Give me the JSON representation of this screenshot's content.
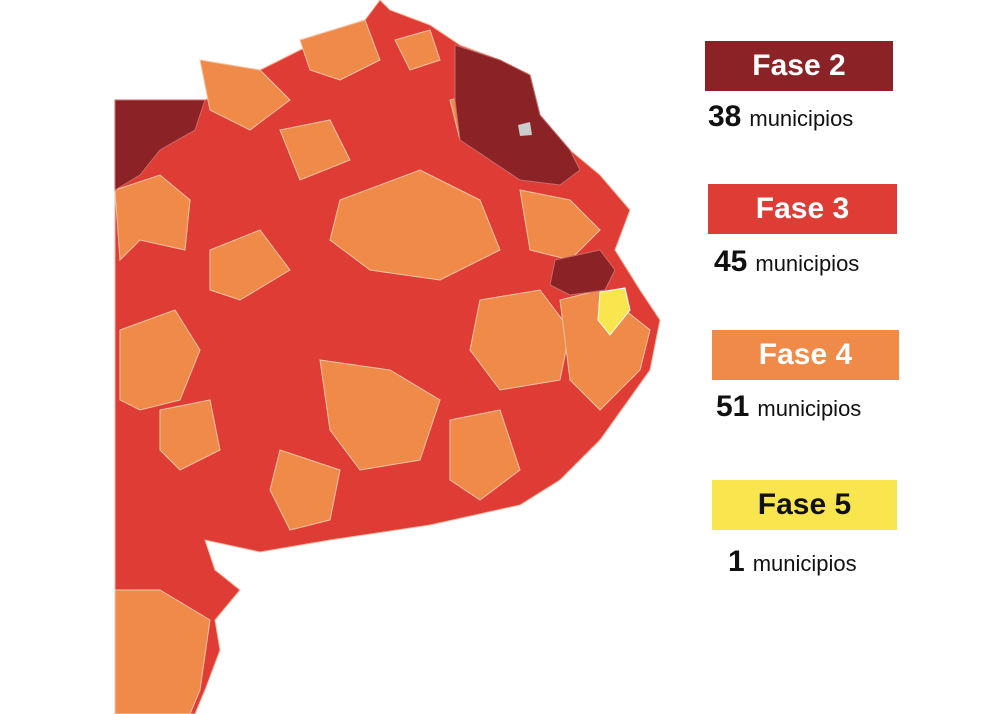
{
  "legend": [
    {
      "label": "Fase 2",
      "count": "38",
      "unit": "municipios",
      "color": "#8b2226",
      "text_color": "#ffffff"
    },
    {
      "label": "Fase 3",
      "count": "45",
      "unit": "municipios",
      "color": "#e03c36",
      "text_color": "#ffffff"
    },
    {
      "label": "Fase 4",
      "count": "51",
      "unit": "municipios",
      "color": "#f08a48",
      "text_color": "#ffffff"
    },
    {
      "label": "Fase 5",
      "count": "1",
      "unit": "municipios",
      "color": "#f9e64f",
      "text_color": "#111111"
    }
  ],
  "map": {
    "region_no_data_color": "#cccccc"
  }
}
